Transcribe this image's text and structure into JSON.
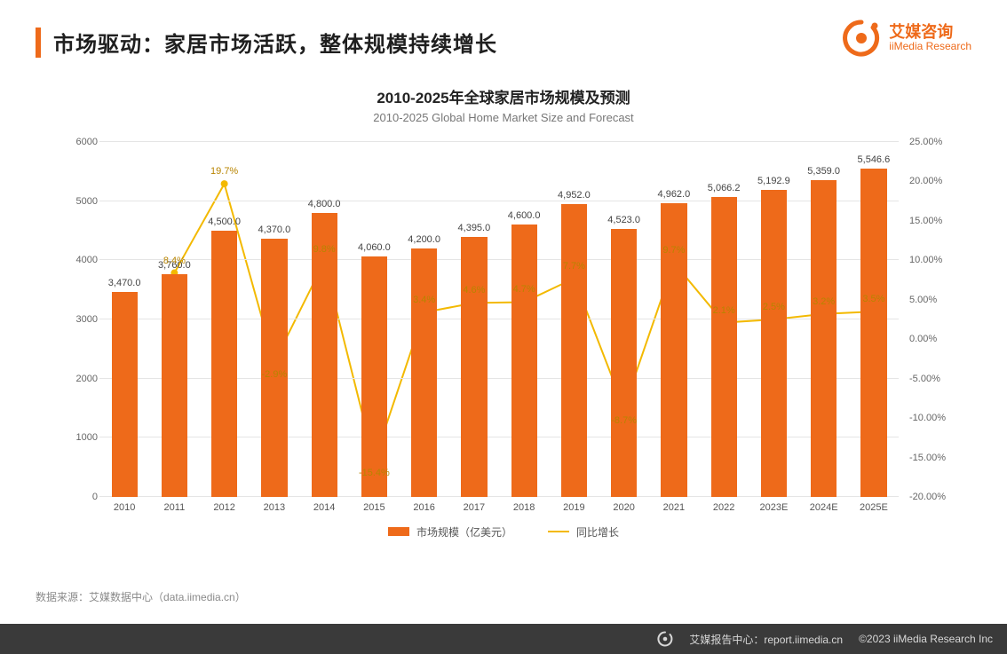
{
  "header": {
    "title": "市场驱动：家居市场活跃，整体规模持续增长",
    "accent_color": "#ee6a1a"
  },
  "brand": {
    "name_cn": "艾媒咨询",
    "name_en": "iiMedia Research",
    "color": "#ee6a1a"
  },
  "chart": {
    "title_cn": "2010-2025年全球家居市场规模及预测",
    "title_en": "2010-2025 Global Home Market Size and Forecast",
    "type": "bar+line",
    "categories": [
      "2010",
      "2011",
      "2012",
      "2013",
      "2014",
      "2015",
      "2016",
      "2017",
      "2018",
      "2019",
      "2020",
      "2021",
      "2022",
      "2023E",
      "2024E",
      "2025E"
    ],
    "bar": {
      "label": "市场规模（亿美元）",
      "values": [
        3470.0,
        3760.0,
        4500.0,
        4370.0,
        4800.0,
        4060.0,
        4200.0,
        4395.0,
        4600.0,
        4952.0,
        4523.0,
        4962.0,
        5066.2,
        5192.9,
        5359.0,
        5546.6
      ],
      "value_labels": [
        "3,470.0",
        "3,760.0",
        "4,500.0",
        "4,370.0",
        "4,800.0",
        "4,060.0",
        "4,200.0",
        "4,395.0",
        "4,600.0",
        "4,952.0",
        "4,523.0",
        "4,962.0",
        "5,066.2",
        "5,192.9",
        "5,359.0",
        "5,546.6"
      ],
      "color": "#ee6a1a",
      "bar_width_ratio": 0.52
    },
    "line": {
      "label": "同比增长",
      "values": [
        null,
        8.4,
        19.7,
        -2.9,
        9.8,
        -15.4,
        3.4,
        4.6,
        4.7,
        7.7,
        -8.7,
        9.7,
        2.1,
        2.5,
        3.2,
        3.5
      ],
      "value_labels": [
        null,
        "8.4%",
        "19.7%",
        "-2.9%",
        "9.8%",
        "-15.4%",
        "3.4%",
        "4.6%",
        "4.7%",
        "7.7%",
        "-8.7%",
        "9.7%",
        "2.1%",
        "2.5%",
        "3.2%",
        "3.5%"
      ],
      "color": "#f3b900",
      "line_width": 2,
      "marker_size": 4
    },
    "y_left": {
      "min": 0,
      "max": 6000,
      "step": 1000,
      "ticks": [
        "0",
        "1000",
        "2000",
        "3000",
        "4000",
        "5000",
        "6000"
      ]
    },
    "y_right": {
      "min": -20,
      "max": 25,
      "step": 5,
      "ticks": [
        "-20.00%",
        "-15.00%",
        "-10.00%",
        "-5.00%",
        "0.00%",
        "5.00%",
        "10.00%",
        "15.00%",
        "20.00%",
        "25.00%"
      ]
    },
    "grid_color": "#e5e5e5",
    "axis_color": "#bdbdbd",
    "background_color": "#ffffff",
    "label_fontsize": 11
  },
  "source": {
    "prefix": "数据来源：",
    "text": "艾媒数据中心（data.iimedia.cn）"
  },
  "footer": {
    "report_center_label": "艾媒报告中心：",
    "report_center_url": "report.iimedia.cn",
    "copyright": "©2023  iiMedia Research  Inc"
  }
}
